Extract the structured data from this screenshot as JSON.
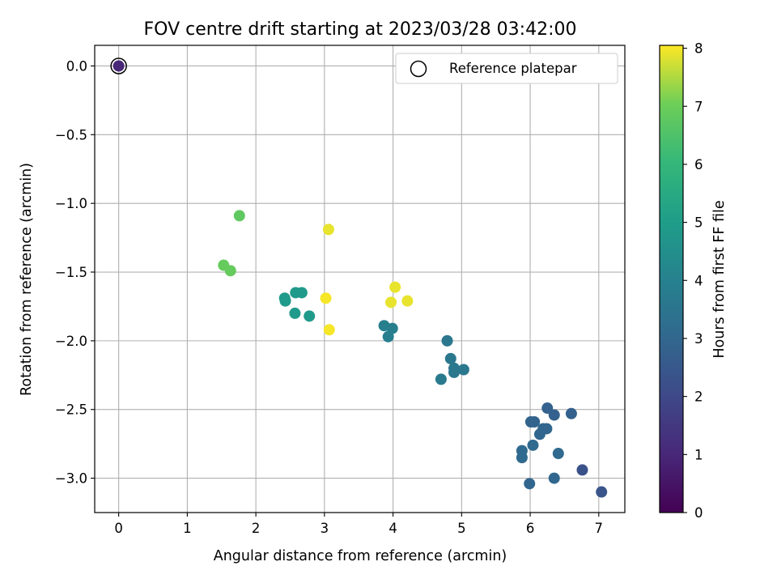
{
  "chart_data": {
    "type": "scatter",
    "title": "FOV centre drift starting at 2023/03/28 03:42:00",
    "xlabel": "Angular distance from reference (arcmin)",
    "ylabel": "Rotation from reference (arcmin)",
    "xlim": [
      -0.35,
      7.38
    ],
    "ylim": [
      -3.25,
      0.15
    ],
    "xticks": [
      0,
      1,
      2,
      3,
      4,
      5,
      6,
      7
    ],
    "yticks": [
      0.0,
      -0.5,
      -1.0,
      -1.5,
      -2.0,
      -2.5,
      -3.0
    ],
    "xtick_labels": [
      "0",
      "1",
      "2",
      "3",
      "4",
      "5",
      "6",
      "7"
    ],
    "ytick_labels": [
      "0.0",
      "−0.5",
      "−1.0",
      "−1.5",
      "−2.0",
      "−2.5",
      "−3.0"
    ],
    "grid": true,
    "legend": {
      "placement": "top-right",
      "entries": [
        "Reference platepar"
      ]
    },
    "reference_point": {
      "x": 0.0,
      "y": 0.0,
      "c": 0.9
    },
    "colorbar": {
      "label": "Hours from first FF file",
      "range": [
        0,
        8.05
      ],
      "ticks": [
        0,
        1,
        2,
        3,
        4,
        5,
        6,
        7,
        8
      ],
      "tick_labels": [
        "0",
        "1",
        "2",
        "3",
        "4",
        "5",
        "6",
        "7",
        "8"
      ],
      "colormap": "viridis"
    },
    "points": [
      {
        "x": 0.0,
        "y": 0.0,
        "c": 1.0
      },
      {
        "x": 6.76,
        "y": -2.94,
        "c": 2.3
      },
      {
        "x": 7.04,
        "y": -3.1,
        "c": 2.4
      },
      {
        "x": 6.25,
        "y": -2.49,
        "c": 2.8
      },
      {
        "x": 6.35,
        "y": -2.54,
        "c": 2.8
      },
      {
        "x": 6.6,
        "y": -2.53,
        "c": 2.8
      },
      {
        "x": 6.01,
        "y": -2.59,
        "c": 2.9
      },
      {
        "x": 6.06,
        "y": -2.59,
        "c": 2.9
      },
      {
        "x": 6.19,
        "y": -2.64,
        "c": 3.0
      },
      {
        "x": 6.24,
        "y": -2.64,
        "c": 3.0
      },
      {
        "x": 6.14,
        "y": -2.68,
        "c": 3.0
      },
      {
        "x": 6.04,
        "y": -2.76,
        "c": 3.1
      },
      {
        "x": 5.88,
        "y": -2.8,
        "c": 3.1
      },
      {
        "x": 5.88,
        "y": -2.85,
        "c": 3.1
      },
      {
        "x": 6.41,
        "y": -2.82,
        "c": 3.1
      },
      {
        "x": 5.99,
        "y": -3.04,
        "c": 3.0
      },
      {
        "x": 6.35,
        "y": -3.0,
        "c": 3.0
      },
      {
        "x": 4.79,
        "y": -2.0,
        "c": 3.6
      },
      {
        "x": 4.84,
        "y": -2.13,
        "c": 3.6
      },
      {
        "x": 4.89,
        "y": -2.2,
        "c": 3.6
      },
      {
        "x": 4.89,
        "y": -2.23,
        "c": 3.6
      },
      {
        "x": 5.03,
        "y": -2.21,
        "c": 3.6
      },
      {
        "x": 4.7,
        "y": -2.28,
        "c": 3.7
      },
      {
        "x": 3.87,
        "y": -1.89,
        "c": 3.9
      },
      {
        "x": 3.99,
        "y": -1.91,
        "c": 3.9
      },
      {
        "x": 3.93,
        "y": -1.97,
        "c": 3.9
      },
      {
        "x": 2.42,
        "y": -1.69,
        "c": 4.9
      },
      {
        "x": 2.43,
        "y": -1.71,
        "c": 4.9
      },
      {
        "x": 2.58,
        "y": -1.65,
        "c": 4.9
      },
      {
        "x": 2.67,
        "y": -1.65,
        "c": 4.9
      },
      {
        "x": 2.57,
        "y": -1.8,
        "c": 4.9
      },
      {
        "x": 2.78,
        "y": -1.82,
        "c": 4.9
      },
      {
        "x": 1.76,
        "y": -1.09,
        "c": 6.8
      },
      {
        "x": 1.53,
        "y": -1.45,
        "c": 6.9
      },
      {
        "x": 1.63,
        "y": -1.49,
        "c": 6.9
      },
      {
        "x": 3.06,
        "y": -1.19,
        "c": 7.9
      },
      {
        "x": 4.03,
        "y": -1.61,
        "c": 7.9
      },
      {
        "x": 3.97,
        "y": -1.72,
        "c": 7.9
      },
      {
        "x": 4.21,
        "y": -1.71,
        "c": 7.9
      },
      {
        "x": 3.02,
        "y": -1.69,
        "c": 8.0
      },
      {
        "x": 3.07,
        "y": -1.92,
        "c": 8.0
      }
    ]
  }
}
